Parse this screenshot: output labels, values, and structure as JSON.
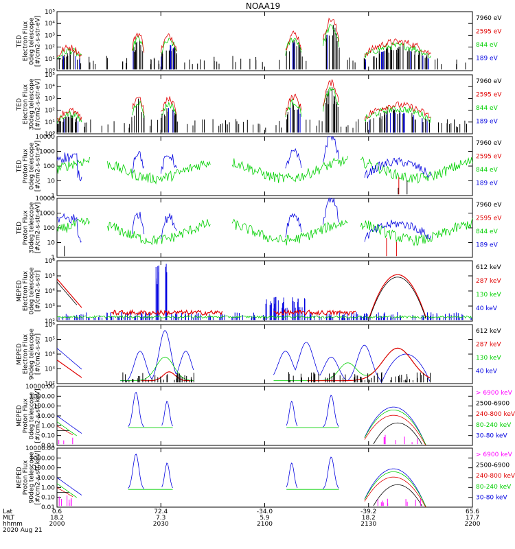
{
  "title": "NOAA19",
  "date_label": "2020 Aug 21",
  "colors": {
    "black": "#000000",
    "red": "#e00000",
    "green": "#00d000",
    "blue": "#0000e0",
    "magenta": "#ff00ff"
  },
  "footer": {
    "row_labels": [
      "Lat",
      "MLT",
      "hhmm"
    ],
    "columns": [
      {
        "lat": "0.6",
        "mlt": "18.2",
        "hhmm": "2000"
      },
      {
        "lat": "72.4",
        "mlt": "7.3",
        "hhmm": "2030"
      },
      {
        "lat": "-34.0",
        "mlt": "5.9",
        "hhmm": "2100"
      },
      {
        "lat": "-39.2",
        "mlt": "18.2",
        "hhmm": "2130"
      },
      {
        "lat": "65.6",
        "mlt": "17.7",
        "hhmm": "2200"
      }
    ]
  },
  "chart_data": [
    {
      "type": "line",
      "ylabel": [
        "TED",
        "Electron Flux",
        "0deg telescope",
        "[#/cm2-s-str-eV]"
      ],
      "scale": "log",
      "ylim": [
        1,
        100000
      ],
      "tick_labels": [
        "10⁰",
        "10¹",
        "10²",
        "10³",
        "10⁴",
        "10⁵"
      ],
      "legend": [
        {
          "text": "7960 eV",
          "color": "black"
        },
        {
          "text": "2595 eV",
          "color": "red"
        },
        {
          "text": "844 eV",
          "color": "green"
        },
        {
          "text": "189 eV",
          "color": "blue"
        }
      ],
      "pattern": "ted_e"
    },
    {
      "type": "line",
      "ylabel": [
        "TED",
        "Electron Flux",
        "30deg telescope",
        "[#/cm2-s-str-eV]"
      ],
      "scale": "log",
      "ylim": [
        1,
        100000
      ],
      "tick_labels": [
        "10⁰",
        "10¹",
        "10²",
        "10³",
        "10⁴",
        "10⁵"
      ],
      "legend": [
        {
          "text": "7960 eV",
          "color": "black"
        },
        {
          "text": "2595 eV",
          "color": "red"
        },
        {
          "text": "844 eV",
          "color": "green"
        },
        {
          "text": "189 eV",
          "color": "blue"
        }
      ],
      "pattern": "ted_e"
    },
    {
      "type": "line",
      "ylabel": [
        "TED",
        "Proton Flux",
        "0deg telescope",
        "[#/cm2-s-str-eV]"
      ],
      "scale": "log",
      "ylim": [
        1,
        10000
      ],
      "tick_labels": [
        "1",
        "10",
        "100",
        "1000",
        "10000"
      ],
      "legend": [
        {
          "text": "7960 eV",
          "color": "black"
        },
        {
          "text": "2595 eV",
          "color": "red"
        },
        {
          "text": "844 eV",
          "color": "green"
        },
        {
          "text": "189 eV",
          "color": "blue"
        }
      ],
      "pattern": "ted_p"
    },
    {
      "type": "line",
      "ylabel": [
        "TED",
        "Proton Flux",
        "30deg telescope",
        "[#/cm2-s-str-eV]"
      ],
      "scale": "log",
      "ylim": [
        1,
        10000
      ],
      "tick_labels": [
        "1",
        "10",
        "100",
        "1000",
        "10000"
      ],
      "legend": [
        {
          "text": "7960 eV",
          "color": "black"
        },
        {
          "text": "2595 eV",
          "color": "red"
        },
        {
          "text": "844 eV",
          "color": "green"
        },
        {
          "text": "189 eV",
          "color": "blue"
        }
      ],
      "pattern": "ted_p"
    },
    {
      "type": "line",
      "ylabel": [
        "MEPED",
        "Electron Flux",
        "0deg telescope",
        "[#/cm2-s-str]"
      ],
      "scale": "log",
      "ylim": [
        100,
        1000000
      ],
      "tick_labels": [
        "10²",
        "10³",
        "10⁴",
        "10⁵",
        "10⁶"
      ],
      "legend": [
        {
          "text": "612 keV",
          "color": "black"
        },
        {
          "text": "287 keV",
          "color": "red"
        },
        {
          "text": "130 keV",
          "color": "green"
        },
        {
          "text": "40 keV",
          "color": "blue"
        }
      ],
      "pattern": "mep_e0"
    },
    {
      "type": "line",
      "ylabel": [
        "MEPED",
        "Electron Flux",
        "90deg telescope",
        "[#/cm2-s-str]"
      ],
      "scale": "log",
      "ylim": [
        100,
        1000000
      ],
      "tick_labels": [
        "10²",
        "10³",
        "10⁴",
        "10⁵",
        "10⁶"
      ],
      "legend": [
        {
          "text": "612 keV",
          "color": "black"
        },
        {
          "text": "287 keV",
          "color": "red"
        },
        {
          "text": "130 keV",
          "color": "green"
        },
        {
          "text": "40 keV",
          "color": "blue"
        }
      ],
      "pattern": "mep_e90"
    },
    {
      "type": "line",
      "ylabel": [
        "MEPED",
        "Proton Flux",
        "0deg telescope",
        "[#/cm2-s-str-keV]"
      ],
      "scale": "log",
      "ylim": [
        0.01,
        10000
      ],
      "tick_labels": [
        "0.01",
        "0.10",
        "1.00",
        "10.00",
        "100.00",
        "1000.00",
        "10000.00"
      ],
      "legend": [
        {
          "text": "> 6900 keV",
          "color": "magenta"
        },
        {
          "text": "2500-6900",
          "color": "black"
        },
        {
          "text": "240-800 keV",
          "color": "red"
        },
        {
          "text": "80-240 keV",
          "color": "green"
        },
        {
          "text": "30-80 keV",
          "color": "blue"
        }
      ],
      "pattern": "mep_p"
    },
    {
      "type": "line",
      "ylabel": [
        "MEPED",
        "Proton Flux",
        "90deg telescope",
        "[#/cm2-s-str-keV]"
      ],
      "scale": "log",
      "ylim": [
        0.01,
        10000
      ],
      "tick_labels": [
        "0.01",
        "0.10",
        "1.00",
        "10.00",
        "100.00",
        "1000.00",
        "10000.00"
      ],
      "legend": [
        {
          "text": "> 6900 keV",
          "color": "magenta"
        },
        {
          "text": "2500-6900",
          "color": "black"
        },
        {
          "text": "240-800 keV",
          "color": "red"
        },
        {
          "text": "80-240 keV",
          "color": "green"
        },
        {
          "text": "30-80 keV",
          "color": "blue"
        }
      ],
      "pattern": "mep_p"
    }
  ]
}
